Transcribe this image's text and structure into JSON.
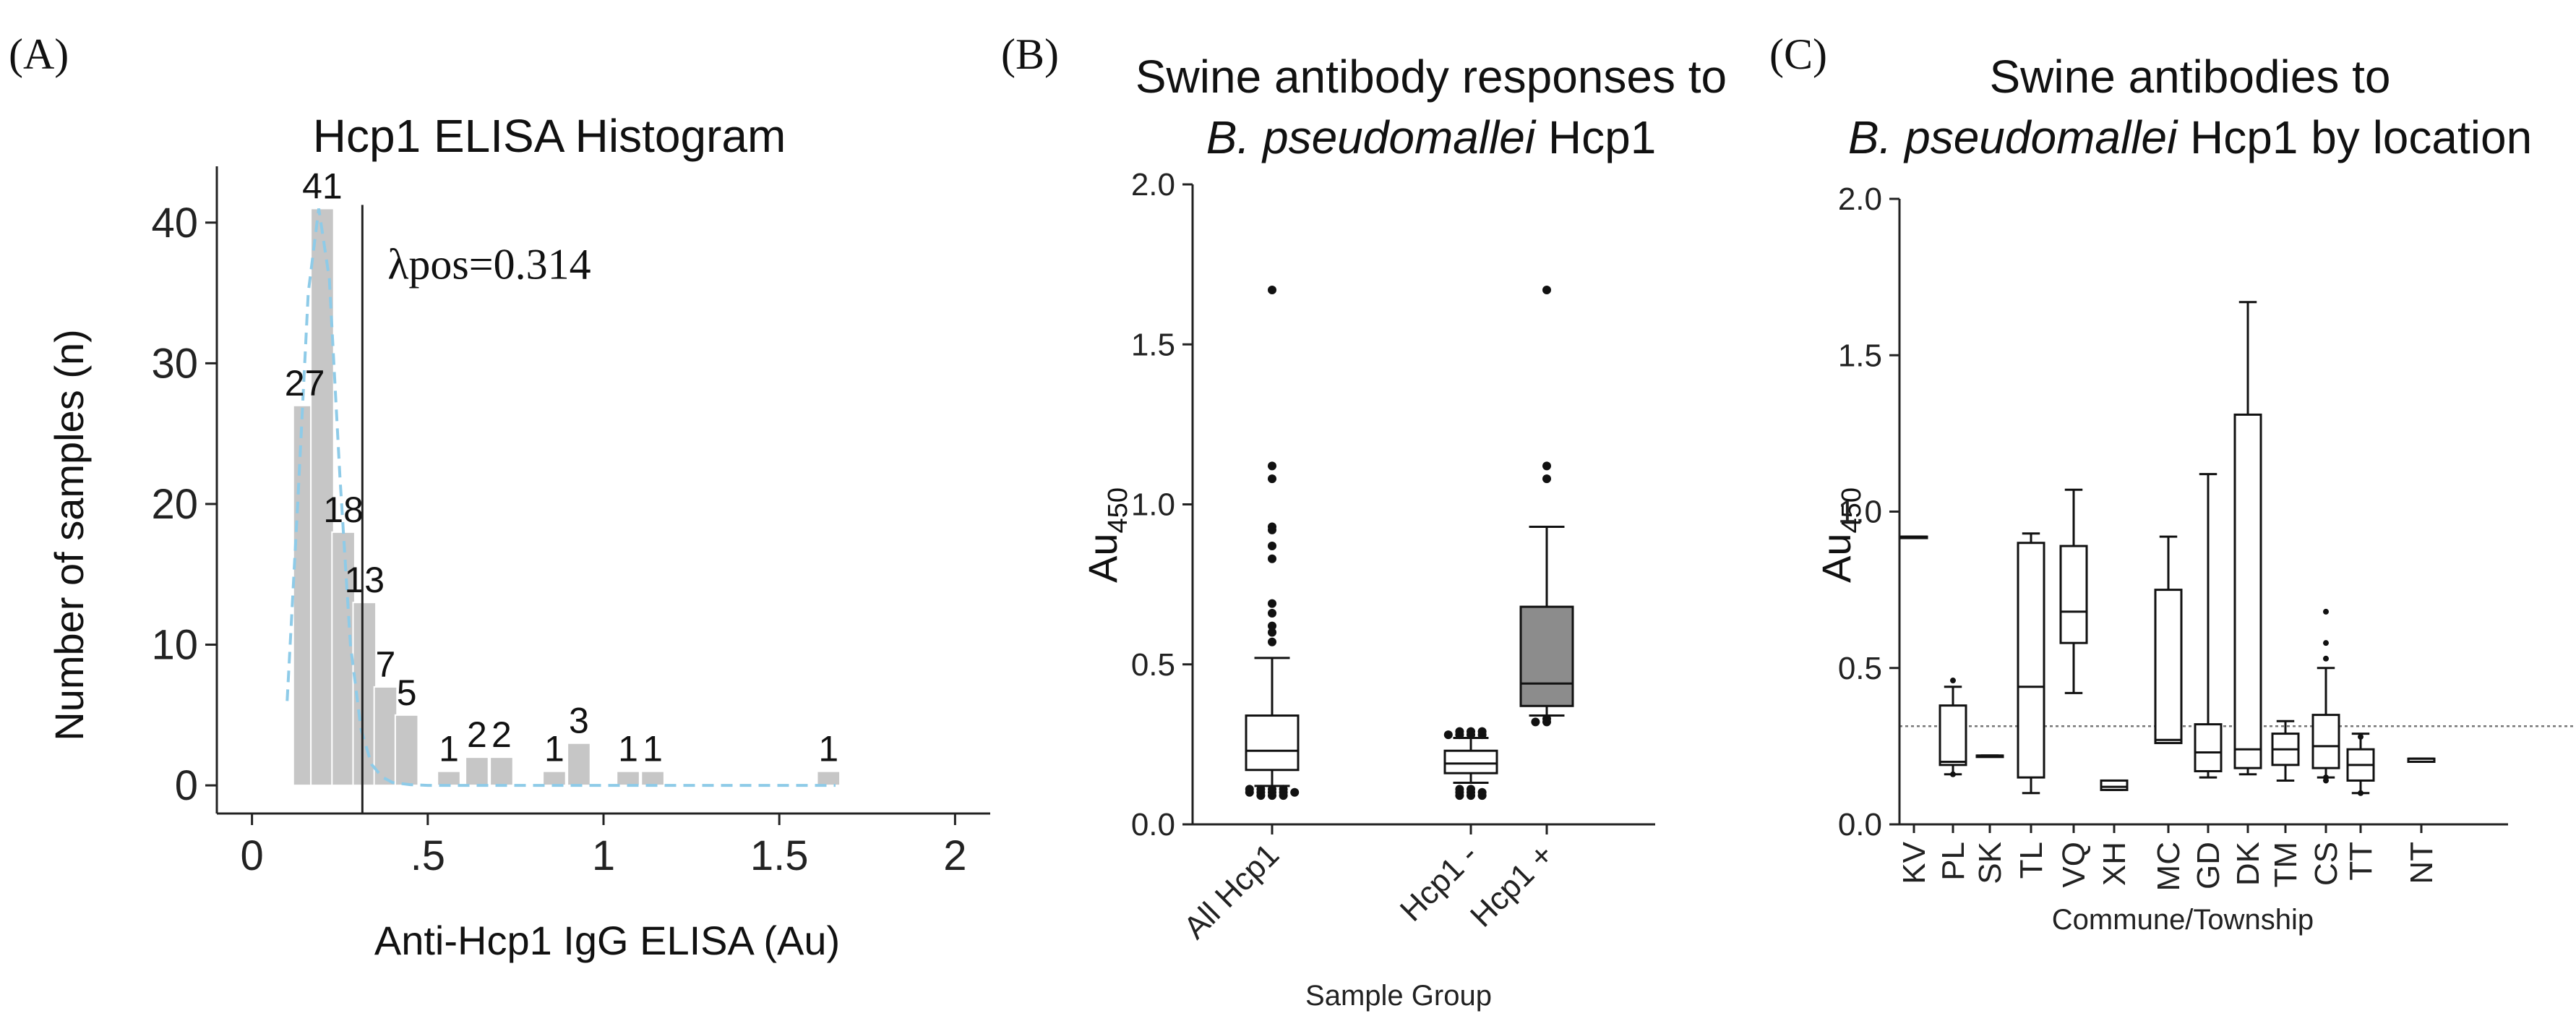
{
  "panel_a": {
    "letter": "(A)",
    "lambda_label": "λpos=0.314"
  },
  "panel_b": {
    "letter": "(B)"
  },
  "panel_c": {
    "letter": "(C)"
  },
  "chart_data": [
    {
      "type": "bar",
      "title": "Hcp1 ELISA Histogram",
      "xlabel": "Anti-Hcp1 IgG ELISA (Au)",
      "ylabel": "Number of samples (n)",
      "xlim": [
        -0.1,
        2.1
      ],
      "ylim": [
        -2,
        44
      ],
      "xticks": [
        0,
        0.5,
        1,
        1.5,
        2
      ],
      "xtick_labels": [
        "0",
        ".5",
        "1",
        "1.5",
        "2"
      ],
      "yticks": [
        0,
        10,
        20,
        30,
        40
      ],
      "ytick_labels": [
        "0",
        "10",
        "20",
        "30",
        "40"
      ],
      "bin_width": 0.065,
      "bins": [
        {
          "x": 0.15,
          "count": 27,
          "label": "27"
        },
        {
          "x": 0.2,
          "count": 41,
          "label": "41"
        },
        {
          "x": 0.26,
          "count": 18,
          "label": "18"
        },
        {
          "x": 0.32,
          "count": 13,
          "label": "13"
        },
        {
          "x": 0.38,
          "count": 7,
          "label": "7"
        },
        {
          "x": 0.44,
          "count": 5,
          "label": "5"
        },
        {
          "x": 0.56,
          "count": 1,
          "label": "1"
        },
        {
          "x": 0.64,
          "count": 2,
          "label": "2"
        },
        {
          "x": 0.71,
          "count": 2,
          "label": "2"
        },
        {
          "x": 0.86,
          "count": 1,
          "label": "1"
        },
        {
          "x": 0.93,
          "count": 3,
          "label": "3"
        },
        {
          "x": 1.07,
          "count": 1,
          "label": "1"
        },
        {
          "x": 1.14,
          "count": 1,
          "label": "1"
        },
        {
          "x": 1.64,
          "count": 1,
          "label": "1"
        }
      ],
      "threshold": 0.314,
      "density_curve": {
        "color": "#8ecbe8",
        "x": [
          0.1,
          0.13,
          0.16,
          0.19,
          0.22,
          0.25,
          0.28,
          0.31,
          0.34,
          0.37,
          0.4,
          0.45,
          0.5,
          0.7,
          1.0,
          1.3,
          1.66
        ],
        "y": [
          6,
          20,
          35,
          41,
          36,
          22,
          10,
          4,
          1.5,
          0.6,
          0.2,
          0.05,
          0,
          0,
          0,
          0,
          0
        ]
      }
    },
    {
      "type": "box",
      "title": [
        "Swine antibody responses to",
        "B. pseudomallei Hcp1"
      ],
      "title_italic": "B. pseudomallei",
      "xlabel": "Sample Group",
      "ylabel": "Au",
      "ylabel_sub": "450",
      "ylim": [
        0,
        2.0
      ],
      "yticks": [
        0,
        0.5,
        1.0,
        1.5,
        2.0
      ],
      "ytick_labels": [
        "0.0",
        "0.5",
        "1.0",
        "1.5",
        "2.0"
      ],
      "groups": [
        {
          "name": "All Hcp1",
          "q1": 0.17,
          "median": 0.23,
          "q3": 0.34,
          "low": 0.12,
          "high": 0.52,
          "fill": "#ffffff",
          "outliers": [
            0.09,
            0.09,
            0.1,
            0.1,
            0.11,
            0.11,
            0.11,
            0.1,
            0.09,
            0.1,
            0.11,
            0.1,
            0.57,
            0.6,
            0.62,
            0.66,
            0.69,
            0.83,
            0.87,
            0.92,
            0.93,
            1.08,
            1.12,
            1.67
          ]
        },
        {
          "name": "Hcp1 -",
          "q1": 0.16,
          "median": 0.19,
          "q3": 0.23,
          "low": 0.13,
          "high": 0.27,
          "fill": "#ffffff",
          "outliers": [
            0.09,
            0.09,
            0.1,
            0.1,
            0.11,
            0.11,
            0.1,
            0.09,
            0.28,
            0.29,
            0.28,
            0.29,
            0.28,
            0.29,
            0.28
          ]
        },
        {
          "name": "Hcp1 +",
          "q1": 0.37,
          "median": 0.44,
          "q3": 0.68,
          "low": 0.34,
          "high": 0.93,
          "fill": "#8c8c8c",
          "outliers": [
            0.32,
            0.32,
            0.33,
            1.08,
            1.12,
            1.67
          ]
        }
      ]
    },
    {
      "type": "box",
      "title": [
        "Swine antibodies to",
        "B. pseudomallei Hcp1 by location"
      ],
      "title_italic": "B. pseudomallei",
      "xlabel": "Commune/Township",
      "ylabel": "Au",
      "ylabel_sub": "450",
      "ylim": [
        0,
        2.0
      ],
      "yticks": [
        0,
        0.5,
        1.0,
        1.5,
        2.0
      ],
      "ytick_labels": [
        "0.0",
        "0.5",
        "1.0",
        "1.5",
        "2.0"
      ],
      "reference_line": 0.314,
      "groups": [
        {
          "name": "KV",
          "q1": 0.92,
          "median": 0.92,
          "q3": 0.92,
          "low": 0.92,
          "high": 0.92,
          "outliers": []
        },
        {
          "name": "PL",
          "q1": 0.19,
          "median": 0.2,
          "q3": 0.38,
          "low": 0.16,
          "high": 0.44,
          "outliers": [
            0.46,
            0.16
          ]
        },
        {
          "name": "SK",
          "q1": 0.22,
          "median": 0.22,
          "q3": 0.22,
          "low": 0.22,
          "high": 0.22,
          "outliers": []
        },
        {
          "name": "TL",
          "q1": 0.15,
          "median": 0.44,
          "q3": 0.9,
          "low": 0.1,
          "high": 0.93,
          "outliers": []
        },
        {
          "name": "VQ",
          "q1": 0.58,
          "median": 0.68,
          "q3": 0.89,
          "low": 0.42,
          "high": 1.07,
          "outliers": []
        },
        {
          "name": "XH",
          "q1": 0.11,
          "median": 0.12,
          "q3": 0.14,
          "low": 0.11,
          "high": 0.14,
          "outliers": []
        },
        {
          "name": "MC",
          "q1": 0.26,
          "median": 0.27,
          "q3": 0.75,
          "low": 0.26,
          "high": 0.92,
          "outliers": []
        },
        {
          "name": "GD",
          "q1": 0.17,
          "median": 0.23,
          "q3": 0.32,
          "low": 0.15,
          "high": 1.12,
          "outliers": []
        },
        {
          "name": "DK",
          "q1": 0.18,
          "median": 0.24,
          "q3": 1.31,
          "low": 0.16,
          "high": 1.67,
          "outliers": []
        },
        {
          "name": "TM",
          "q1": 0.19,
          "median": 0.24,
          "q3": 0.29,
          "low": 0.14,
          "high": 0.33,
          "outliers": []
        },
        {
          "name": "CS",
          "q1": 0.18,
          "median": 0.25,
          "q3": 0.35,
          "low": 0.15,
          "high": 0.5,
          "outliers": [
            0.53,
            0.58,
            0.68,
            0.14,
            0.15
          ]
        },
        {
          "name": "TT",
          "q1": 0.14,
          "median": 0.19,
          "q3": 0.24,
          "low": 0.1,
          "high": 0.29,
          "outliers": [
            0.28,
            0.1
          ]
        },
        {
          "name": "NT",
          "q1": 0.2,
          "median": 0.21,
          "q3": 0.21,
          "low": 0.2,
          "high": 0.21,
          "outliers": []
        }
      ]
    }
  ]
}
